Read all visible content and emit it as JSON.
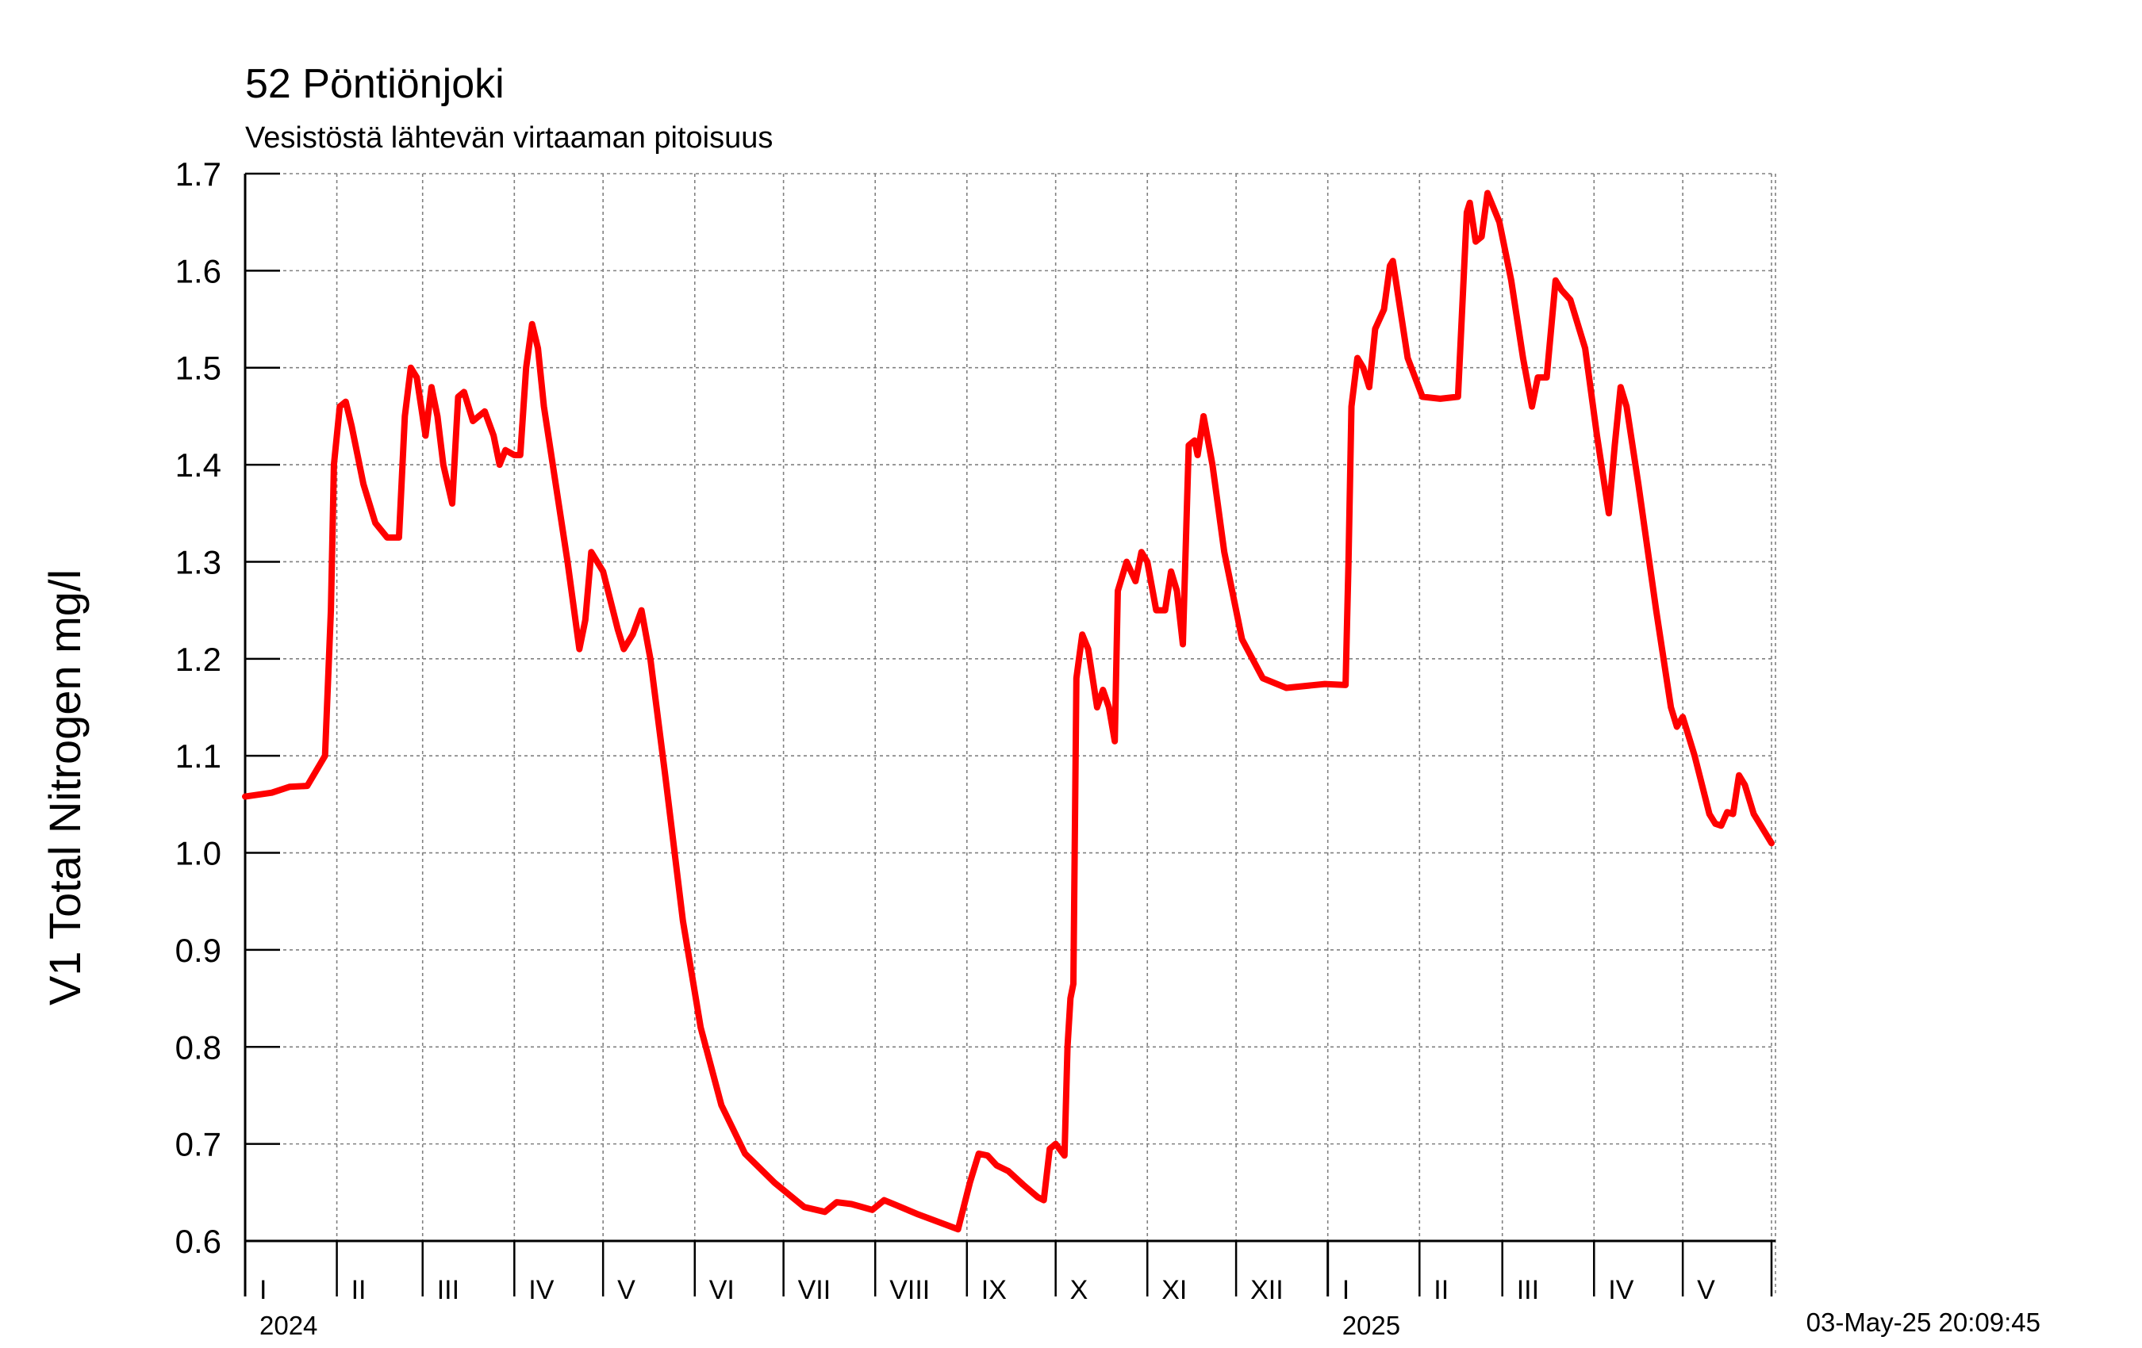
{
  "chart_data": {
    "type": "line",
    "title": "52 Pöntiönjoki",
    "subtitle": "Vesistöstä lähtevän virtaaman pitoisuus",
    "ylabel": "V1 Total Nitrogen mg/l",
    "xlabel": "",
    "ylim": [
      0.6,
      1.7
    ],
    "yticks": [
      "0.6",
      "0.7",
      "0.8",
      "0.9",
      "1.0",
      "1.1",
      "1.2",
      "1.3",
      "1.4",
      "1.5",
      "1.6",
      "1.7"
    ],
    "xlim": [
      "2024-01-01",
      "2025-05-31"
    ],
    "grid": true,
    "years": [
      {
        "label": "2024",
        "date": "2024-01-01"
      },
      {
        "label": "2025",
        "date": "2025-01-01"
      }
    ],
    "months": [
      {
        "label": "I",
        "start": "2024-01-01"
      },
      {
        "label": "II",
        "start": "2024-02-01"
      },
      {
        "label": "III",
        "start": "2024-03-01"
      },
      {
        "label": "IV",
        "start": "2024-04-01"
      },
      {
        "label": "V",
        "start": "2024-05-01"
      },
      {
        "label": "VI",
        "start": "2024-06-01"
      },
      {
        "label": "VII",
        "start": "2024-07-01"
      },
      {
        "label": "VIII",
        "start": "2024-08-01"
      },
      {
        "label": "IX",
        "start": "2024-09-01"
      },
      {
        "label": "X",
        "start": "2024-10-01"
      },
      {
        "label": "XI",
        "start": "2024-11-01"
      },
      {
        "label": "XII",
        "start": "2024-12-01"
      },
      {
        "label": "I",
        "start": "2025-01-01"
      },
      {
        "label": "II",
        "start": "2025-02-01"
      },
      {
        "label": "III",
        "start": "2025-03-01"
      },
      {
        "label": "IV",
        "start": "2025-04-01"
      },
      {
        "label": "V",
        "start": "2025-05-01"
      }
    ],
    "series": [
      {
        "color": "#ff0000",
        "points": [
          [
            "2024-01-01",
            1.058
          ],
          [
            "2024-01-10",
            1.062
          ],
          [
            "2024-01-16",
            1.068
          ],
          [
            "2024-01-22",
            1.069
          ],
          [
            "2024-01-28",
            1.1
          ],
          [
            "2024-01-30",
            1.25
          ],
          [
            "2024-01-31",
            1.4
          ],
          [
            "2024-02-02",
            1.46
          ],
          [
            "2024-02-04",
            1.465
          ],
          [
            "2024-02-06",
            1.44
          ],
          [
            "2024-02-10",
            1.38
          ],
          [
            "2024-02-14",
            1.34
          ],
          [
            "2024-02-18",
            1.325
          ],
          [
            "2024-02-22",
            1.325
          ],
          [
            "2024-02-24",
            1.45
          ],
          [
            "2024-02-26",
            1.5
          ],
          [
            "2024-02-28",
            1.49
          ],
          [
            "2024-03-02",
            1.43
          ],
          [
            "2024-03-04",
            1.48
          ],
          [
            "2024-03-06",
            1.45
          ],
          [
            "2024-03-08",
            1.4
          ],
          [
            "2024-03-11",
            1.36
          ],
          [
            "2024-03-13",
            1.47
          ],
          [
            "2024-03-15",
            1.475
          ],
          [
            "2024-03-18",
            1.445
          ],
          [
            "2024-03-22",
            1.455
          ],
          [
            "2024-03-25",
            1.43
          ],
          [
            "2024-03-27",
            1.4
          ],
          [
            "2024-03-29",
            1.415
          ],
          [
            "2024-04-01",
            1.41
          ],
          [
            "2024-04-03",
            1.41
          ],
          [
            "2024-04-05",
            1.5
          ],
          [
            "2024-04-07",
            1.545
          ],
          [
            "2024-04-09",
            1.52
          ],
          [
            "2024-04-11",
            1.46
          ],
          [
            "2024-04-15",
            1.38
          ],
          [
            "2024-04-19",
            1.3
          ],
          [
            "2024-04-23",
            1.21
          ],
          [
            "2024-04-25",
            1.24
          ],
          [
            "2024-04-27",
            1.31
          ],
          [
            "2024-05-01",
            1.29
          ],
          [
            "2024-05-06",
            1.23
          ],
          [
            "2024-05-08",
            1.21
          ],
          [
            "2024-05-11",
            1.225
          ],
          [
            "2024-05-14",
            1.25
          ],
          [
            "2024-05-17",
            1.2
          ],
          [
            "2024-05-22",
            1.08
          ],
          [
            "2024-05-28",
            0.93
          ],
          [
            "2024-06-03",
            0.82
          ],
          [
            "2024-06-10",
            0.74
          ],
          [
            "2024-06-18",
            0.69
          ],
          [
            "2024-06-28",
            0.66
          ],
          [
            "2024-07-08",
            0.635
          ],
          [
            "2024-07-15",
            0.63
          ],
          [
            "2024-07-19",
            0.64
          ],
          [
            "2024-07-24",
            0.638
          ],
          [
            "2024-07-31",
            0.632
          ],
          [
            "2024-08-04",
            0.642
          ],
          [
            "2024-08-08",
            0.637
          ],
          [
            "2024-08-15",
            0.628
          ],
          [
            "2024-08-22",
            0.62
          ],
          [
            "2024-08-29",
            0.612
          ],
          [
            "2024-09-02",
            0.66
          ],
          [
            "2024-09-05",
            0.69
          ],
          [
            "2024-09-08",
            0.688
          ],
          [
            "2024-09-11",
            0.678
          ],
          [
            "2024-09-15",
            0.672
          ],
          [
            "2024-09-20",
            0.658
          ],
          [
            "2024-09-25",
            0.645
          ],
          [
            "2024-09-27",
            0.642
          ],
          [
            "2024-09-29",
            0.695
          ],
          [
            "2024-10-01",
            0.7
          ],
          [
            "2024-10-04",
            0.688
          ],
          [
            "2024-10-05",
            0.8
          ],
          [
            "2024-10-06",
            0.85
          ],
          [
            "2024-10-07",
            0.865
          ],
          [
            "2024-10-08",
            1.18
          ],
          [
            "2024-10-10",
            1.225
          ],
          [
            "2024-10-12",
            1.21
          ],
          [
            "2024-10-15",
            1.15
          ],
          [
            "2024-10-17",
            1.168
          ],
          [
            "2024-10-19",
            1.15
          ],
          [
            "2024-10-21",
            1.115
          ],
          [
            "2024-10-22",
            1.27
          ],
          [
            "2024-10-25",
            1.3
          ],
          [
            "2024-10-28",
            1.28
          ],
          [
            "2024-10-30",
            1.31
          ],
          [
            "2024-11-01",
            1.3
          ],
          [
            "2024-11-04",
            1.25
          ],
          [
            "2024-11-07",
            1.25
          ],
          [
            "2024-11-09",
            1.29
          ],
          [
            "2024-11-11",
            1.27
          ],
          [
            "2024-11-13",
            1.215
          ],
          [
            "2024-11-15",
            1.42
          ],
          [
            "2024-11-17",
            1.425
          ],
          [
            "2024-11-18",
            1.41
          ],
          [
            "2024-11-20",
            1.45
          ],
          [
            "2024-11-23",
            1.4
          ],
          [
            "2024-11-27",
            1.31
          ],
          [
            "2024-12-03",
            1.22
          ],
          [
            "2024-12-10",
            1.18
          ],
          [
            "2024-12-18",
            1.17
          ],
          [
            "2024-12-31",
            1.174
          ],
          [
            "2025-01-07",
            1.173
          ],
          [
            "2025-01-08",
            1.3
          ],
          [
            "2025-01-09",
            1.46
          ],
          [
            "2025-01-11",
            1.51
          ],
          [
            "2025-01-13",
            1.5
          ],
          [
            "2025-01-15",
            1.48
          ],
          [
            "2025-01-17",
            1.54
          ],
          [
            "2025-01-20",
            1.56
          ],
          [
            "2025-01-22",
            1.605
          ],
          [
            "2025-01-23",
            1.61
          ],
          [
            "2025-01-25",
            1.57
          ],
          [
            "2025-01-28",
            1.51
          ],
          [
            "2025-02-02",
            1.47
          ],
          [
            "2025-02-08",
            1.468
          ],
          [
            "2025-02-14",
            1.47
          ],
          [
            "2025-02-17",
            1.66
          ],
          [
            "2025-02-18",
            1.67
          ],
          [
            "2025-02-20",
            1.63
          ],
          [
            "2025-02-22",
            1.635
          ],
          [
            "2025-02-24",
            1.68
          ],
          [
            "2025-02-28",
            1.65
          ],
          [
            "2025-03-04",
            1.59
          ],
          [
            "2025-03-08",
            1.51
          ],
          [
            "2025-03-11",
            1.46
          ],
          [
            "2025-03-13",
            1.49
          ],
          [
            "2025-03-16",
            1.49
          ],
          [
            "2025-03-19",
            1.59
          ],
          [
            "2025-03-21",
            1.58
          ],
          [
            "2025-03-24",
            1.57
          ],
          [
            "2025-03-29",
            1.52
          ],
          [
            "2025-04-02",
            1.43
          ],
          [
            "2025-04-06",
            1.35
          ],
          [
            "2025-04-08",
            1.42
          ],
          [
            "2025-04-10",
            1.48
          ],
          [
            "2025-04-12",
            1.46
          ],
          [
            "2025-04-16",
            1.38
          ],
          [
            "2025-04-22",
            1.25
          ],
          [
            "2025-04-27",
            1.15
          ],
          [
            "2025-04-29",
            1.13
          ],
          [
            "2025-05-01",
            1.14
          ],
          [
            "2025-05-05",
            1.1
          ],
          [
            "2025-05-10",
            1.04
          ],
          [
            "2025-05-12",
            1.03
          ],
          [
            "2025-05-14",
            1.028
          ],
          [
            "2025-05-16",
            1.042
          ],
          [
            "2025-05-18",
            1.04
          ],
          [
            "2025-05-20",
            1.08
          ],
          [
            "2025-05-22",
            1.07
          ],
          [
            "2025-05-25",
            1.04
          ],
          [
            "2025-05-31",
            1.01
          ]
        ]
      }
    ],
    "timestamp": "03-May-25 20:09:45"
  }
}
